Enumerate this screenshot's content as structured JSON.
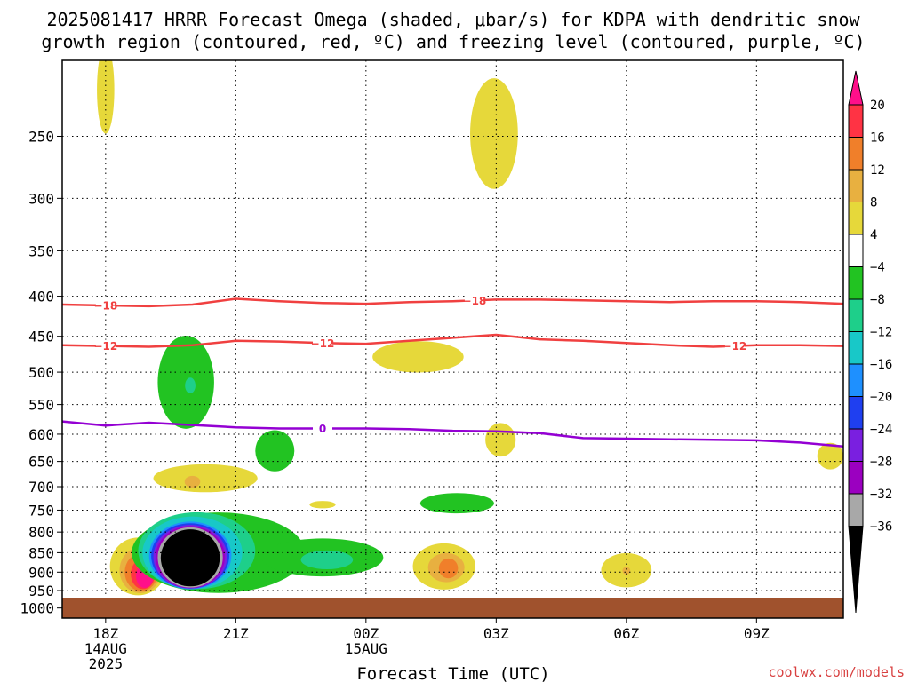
{
  "title_line1": "2025081417 HRRR Forecast Omega (shaded, μbar/s) for KDPA with dendritic snow",
  "title_line2": "growth region (contoured, red, ºC) and freezing level (contoured, purple, ºC)",
  "xlabel": "Forecast Time (UTC)",
  "watermark": "coolwx.com/models",
  "colors": {
    "ground": "#a0522d",
    "temp_contour": "#f04040",
    "freezing_contour": "#9400d3",
    "grid": "#000000"
  },
  "chart_data": {
    "type": "heatmap",
    "title": "2025081417 HRRR Forecast Omega (shaded, μbar/s) for KDPA with dendritic snow growth region (contoured, red, ºC) and freezing level (contoured, purple, ºC)",
    "xlabel": "Forecast Time (UTC)",
    "ylabel": "",
    "yscale": "log",
    "ylim": [
      1030,
      200
    ],
    "xlim": [
      -1,
      17
    ],
    "x_ticks": [
      {
        "h": 0,
        "label": "18Z",
        "sub": [
          "14AUG",
          "2025"
        ]
      },
      {
        "h": 3,
        "label": "21Z",
        "sub": []
      },
      {
        "h": 6,
        "label": "00Z",
        "sub": [
          "15AUG"
        ]
      },
      {
        "h": 9,
        "label": "03Z",
        "sub": []
      },
      {
        "h": 12,
        "label": "06Z",
        "sub": []
      },
      {
        "h": 15,
        "label": "09Z",
        "sub": []
      }
    ],
    "y_ticks": [
      250,
      300,
      350,
      400,
      450,
      500,
      550,
      600,
      650,
      700,
      750,
      800,
      850,
      900,
      950,
      1000
    ],
    "grid": true,
    "colorbar": {
      "labels": [
        "20",
        "16",
        "12",
        "8",
        "4",
        "−4",
        "−8",
        "−12",
        "−16",
        "−20",
        "−24",
        "−28",
        "−32",
        "−36"
      ],
      "colors": [
        "#ff3344",
        "#f07f2a",
        "#e8b040",
        "#e6d83a",
        "#ffffff",
        "#22c322",
        "#1ecf8a",
        "#18c8c8",
        "#1e90ff",
        "#1f3ff0",
        "#7a1fe0",
        "#9b00c0",
        "#a8a8a8"
      ],
      "top_color": "#ff0f8a",
      "bottom_color": "#000000"
    },
    "contours": [
      {
        "name": "-18",
        "color": "#f04040",
        "label_at": [
          0,
          8.5
        ],
        "points": [
          [
            -1,
            410
          ],
          [
            0,
            411
          ],
          [
            1,
            412
          ],
          [
            2,
            410
          ],
          [
            3,
            403
          ],
          [
            4,
            406
          ],
          [
            5,
            408
          ],
          [
            6,
            409
          ],
          [
            7,
            407
          ],
          [
            8,
            406
          ],
          [
            9,
            404
          ],
          [
            10,
            404
          ],
          [
            11,
            405
          ],
          [
            12,
            406
          ],
          [
            13,
            407
          ],
          [
            14,
            406
          ],
          [
            15,
            406
          ],
          [
            16,
            407
          ],
          [
            17,
            409
          ]
        ]
      },
      {
        "name": "-12",
        "color": "#f04040",
        "label_at": [
          0,
          5,
          14.5
        ],
        "points": [
          [
            -1,
            462
          ],
          [
            0,
            463
          ],
          [
            1,
            464
          ],
          [
            2,
            462
          ],
          [
            3,
            456
          ],
          [
            4,
            457
          ],
          [
            5,
            459
          ],
          [
            6,
            460
          ],
          [
            7,
            456
          ],
          [
            8,
            452
          ],
          [
            9,
            448
          ],
          [
            10,
            454
          ],
          [
            11,
            456
          ],
          [
            12,
            459
          ],
          [
            13,
            462
          ],
          [
            14,
            464
          ],
          [
            15,
            462
          ],
          [
            16,
            462
          ],
          [
            17,
            463
          ]
        ]
      },
      {
        "name": "0",
        "color": "#9400d3",
        "label_at": [
          5
        ],
        "points": [
          [
            -1,
            578
          ],
          [
            0,
            585
          ],
          [
            1,
            580
          ],
          [
            2,
            584
          ],
          [
            3,
            588
          ],
          [
            4,
            590
          ],
          [
            5,
            590
          ],
          [
            6,
            590
          ],
          [
            7,
            591
          ],
          [
            8,
            594
          ],
          [
            9,
            595
          ],
          [
            10,
            598
          ],
          [
            11,
            607
          ],
          [
            12,
            608
          ],
          [
            13,
            609
          ],
          [
            14,
            610
          ],
          [
            15,
            611
          ],
          [
            16,
            615
          ],
          [
            17,
            622
          ]
        ]
      }
    ],
    "omega_features": [
      {
        "x": 0,
        "p": 218,
        "rx": 0.2,
        "ry": 28,
        "value": 6
      },
      {
        "x": 8.95,
        "p": 248,
        "rx": 0.55,
        "ry": 40,
        "value": 6
      },
      {
        "x": 7.2,
        "p": 478,
        "rx": 1.05,
        "ry": 22,
        "value": 6
      },
      {
        "x": 16.7,
        "p": 640,
        "rx": 0.3,
        "ry": 25,
        "value": 6
      },
      {
        "x": 9.1,
        "p": 610,
        "rx": 0.35,
        "ry": 30,
        "value": 6
      },
      {
        "x": 1.85,
        "p": 515,
        "rx": 0.65,
        "ry": 70,
        "value": -6
      },
      {
        "x": 1.95,
        "p": 520,
        "rx": 0.12,
        "ry": 12,
        "value": -10
      },
      {
        "x": 3.9,
        "p": 630,
        "rx": 0.45,
        "ry": 38,
        "value": -6
      },
      {
        "x": 2.3,
        "p": 683,
        "rx": 1.2,
        "ry": 28,
        "value": 6
      },
      {
        "x": 2.0,
        "p": 690,
        "rx": 0.18,
        "ry": 12,
        "value": 10
      },
      {
        "x": 5.0,
        "p": 738,
        "rx": 0.3,
        "ry": 8,
        "value": 6
      },
      {
        "x": 8.1,
        "p": 735,
        "rx": 0.85,
        "ry": 22,
        "value": -6
      },
      {
        "x": 0.75,
        "p": 885,
        "rx": 0.65,
        "ry": 75,
        "value": 6
      },
      {
        "x": 0.8,
        "p": 895,
        "rx": 0.48,
        "ry": 60,
        "value": 10
      },
      {
        "x": 0.82,
        "p": 900,
        "rx": 0.38,
        "ry": 50,
        "value": 14
      },
      {
        "x": 0.86,
        "p": 905,
        "rx": 0.28,
        "ry": 40,
        "value": 18
      },
      {
        "x": 0.9,
        "p": 910,
        "rx": 0.2,
        "ry": 32,
        "value": 22
      },
      {
        "x": 2.6,
        "p": 850,
        "rx": 2.0,
        "ry": 100,
        "value": -6
      },
      {
        "x": 5.0,
        "p": 862,
        "rx": 1.4,
        "ry": 48,
        "value": -6
      },
      {
        "x": 2.1,
        "p": 845,
        "rx": 1.35,
        "ry": 95,
        "value": -10
      },
      {
        "x": 2.0,
        "p": 850,
        "rx": 1.15,
        "ry": 90,
        "value": -14
      },
      {
        "x": 5.1,
        "p": 868,
        "rx": 0.6,
        "ry": 24,
        "value": -10
      },
      {
        "x": 1.95,
        "p": 857,
        "rx": 0.95,
        "ry": 85,
        "value": -18
      },
      {
        "x": 1.95,
        "p": 858,
        "rx": 0.9,
        "ry": 82,
        "value": -22
      },
      {
        "x": 1.95,
        "p": 860,
        "rx": 0.85,
        "ry": 80,
        "value": -26
      },
      {
        "x": 1.95,
        "p": 861,
        "rx": 0.8,
        "ry": 78,
        "value": -30
      },
      {
        "x": 1.95,
        "p": 862,
        "rx": 0.75,
        "ry": 76,
        "value": -34
      },
      {
        "x": 1.95,
        "p": 863,
        "rx": 0.68,
        "ry": 72,
        "value": -38
      },
      {
        "x": 7.8,
        "p": 885,
        "rx": 0.72,
        "ry": 60,
        "value": 6
      },
      {
        "x": 7.85,
        "p": 888,
        "rx": 0.42,
        "ry": 38,
        "value": 10
      },
      {
        "x": 7.9,
        "p": 890,
        "rx": 0.22,
        "ry": 26,
        "value": 14
      },
      {
        "x": 12.0,
        "p": 895,
        "rx": 0.58,
        "ry": 45,
        "value": 6
      },
      {
        "x": 12.0,
        "p": 896,
        "rx": 0.09,
        "ry": 10,
        "value": 10
      }
    ]
  }
}
